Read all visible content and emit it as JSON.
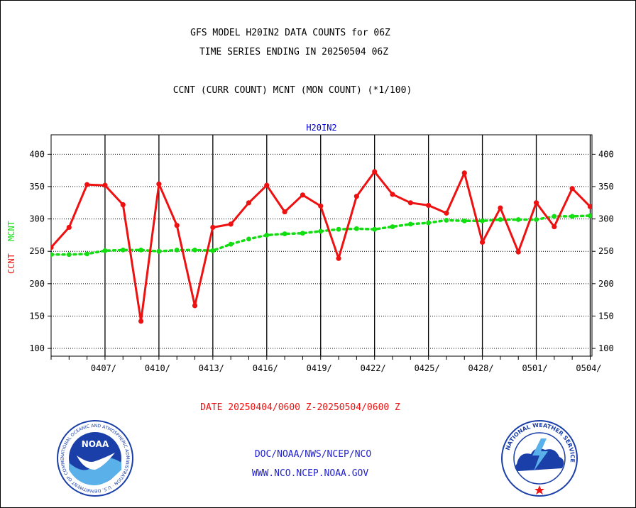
{
  "header": {
    "title_line1": "GFS MODEL H20IN2 DATA COUNTS for 06Z",
    "title_line2": "TIME SERIES ENDING IN 20250504 06Z",
    "subtitle": "CCNT (CURR COUNT) MCNT (MON COUNT) (*1/100)"
  },
  "footer": {
    "date_range": "DATE 20250404/0600 Z-20250504/0600 Z",
    "org_line": "DOC/NOAA/NWS/NCEP/NCO",
    "website": "WWW.NCO.NCEP.NOAA.GOV"
  },
  "logos": {
    "noaa": {
      "label": "NOAA",
      "ring_text": "NATIONAL OCEANIC AND ATMOSPHERIC ADMINISTRATION · U.S. DEPARTMENT OF COMMERCE"
    },
    "nws": {
      "ring_text": "NATIONAL WEATHER SERVICE"
    }
  },
  "colors": {
    "ccnt": "#ee1111",
    "mcnt": "#11dd11",
    "panel_title": "#0000cc",
    "footer_red": "#ee1111",
    "footer_blue": "#2222cc"
  },
  "chart_data": {
    "type": "line",
    "panel_title": "H20IN2",
    "ylabel_ccnt": "CCNT",
    "ylabel_mcnt": "MCNT",
    "ylim": [
      88,
      430
    ],
    "yticks": [
      100,
      150,
      200,
      250,
      300,
      350,
      400
    ],
    "y_tick_labels": [
      "100",
      "150",
      "200",
      "250",
      "300",
      "350",
      "400"
    ],
    "x_tick_labels": [
      "0407/",
      "0410/",
      "0413/",
      "0416/",
      "0419/",
      "0422/",
      "0425/",
      "0428/",
      "0501/",
      "0504/"
    ],
    "x_tick_days": [
      3,
      6,
      9,
      12,
      15,
      18,
      21,
      24,
      27,
      30
    ],
    "xlim": [
      0,
      30.1
    ],
    "grid": true,
    "series": [
      {
        "name": "CCNT",
        "x": [
          0,
          1,
          2,
          3,
          4,
          5,
          6,
          7,
          8,
          9,
          10,
          11,
          12,
          13,
          14,
          15,
          16,
          17,
          18,
          19,
          20,
          21,
          22,
          23,
          24,
          25,
          26,
          27,
          28,
          29,
          30
        ],
        "values": [
          256,
          287,
          353,
          352,
          322,
          142,
          354,
          290,
          166,
          287,
          292,
          325,
          352,
          311,
          337,
          320,
          239,
          335,
          373,
          338,
          325,
          321,
          309,
          371,
          264,
          317,
          249,
          325,
          288,
          347,
          319
        ]
      },
      {
        "name": "MCNT",
        "x": [
          0,
          1,
          2,
          3,
          4,
          5,
          6,
          7,
          8,
          9,
          10,
          11,
          12,
          13,
          14,
          15,
          16,
          17,
          18,
          19,
          20,
          21,
          22,
          23,
          24,
          25,
          26,
          27,
          28,
          29,
          30
        ],
        "values": [
          245,
          245,
          246,
          251,
          252,
          252,
          250,
          252,
          252,
          251,
          261,
          269,
          275,
          277,
          278,
          281,
          284,
          285,
          284,
          288,
          292,
          294,
          298,
          297,
          297,
          299,
          299,
          299,
          304,
          304,
          305
        ]
      }
    ]
  }
}
